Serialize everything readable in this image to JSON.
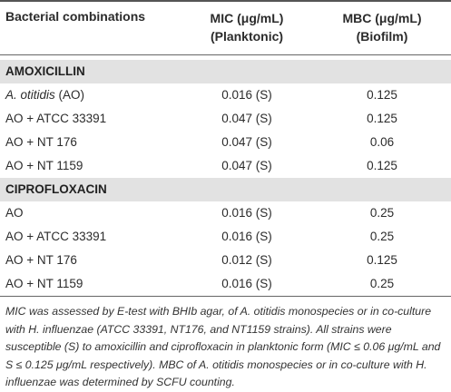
{
  "header": {
    "col1": "Bacterial combinations",
    "col2_line1": "MIC (μg/mL)",
    "col2_line2": "(Planktonic)",
    "col3_line1": "MBC (μg/mL)",
    "col3_line2": "(Biofilm)"
  },
  "sections": [
    {
      "title": "AMOXICILLIN",
      "rows": [
        {
          "name_italic": "A. otitidis",
          "name": " (AO)",
          "mic": "0.016 (S)",
          "mbc": "0.125"
        },
        {
          "name_italic": "",
          "name": "AO + ATCC 33391",
          "mic": "0.047 (S)",
          "mbc": "0.125"
        },
        {
          "name_italic": "",
          "name": "AO + NT 176",
          "mic": "0.047 (S)",
          "mbc": "0.06"
        },
        {
          "name_italic": "",
          "name": "AO + NT 1159",
          "mic": "0.047 (S)",
          "mbc": "0.125"
        }
      ]
    },
    {
      "title": "CIPROFLOXACIN",
      "rows": [
        {
          "name_italic": "",
          "name": "AO",
          "mic": "0.016 (S)",
          "mbc": "0.25"
        },
        {
          "name_italic": "",
          "name": "AO + ATCC 33391",
          "mic": "0.016 (S)",
          "mbc": "0.25"
        },
        {
          "name_italic": "",
          "name": "AO + NT 176",
          "mic": "0.012 (S)",
          "mbc": "0.125"
        },
        {
          "name_italic": "",
          "name": "AO + NT 1159",
          "mic": "0.016 (S)",
          "mbc": "0.25"
        }
      ]
    }
  ],
  "footnote": "MIC was assessed by E-test with BHIb agar, of A. otitidis monospecies or in co-culture with H. influenzae (ATCC 33391, NT176, and NT1159 strains). All strains were susceptible (S) to amoxicillin and ciprofloxacin in planktonic form (MIC ≤ 0.06 μg/mL and S ≤ 0.125 μg/mL respectively). MBC of A. otitidis monospecies or in co-culture with H. influenzae was determined by SCFU counting."
}
